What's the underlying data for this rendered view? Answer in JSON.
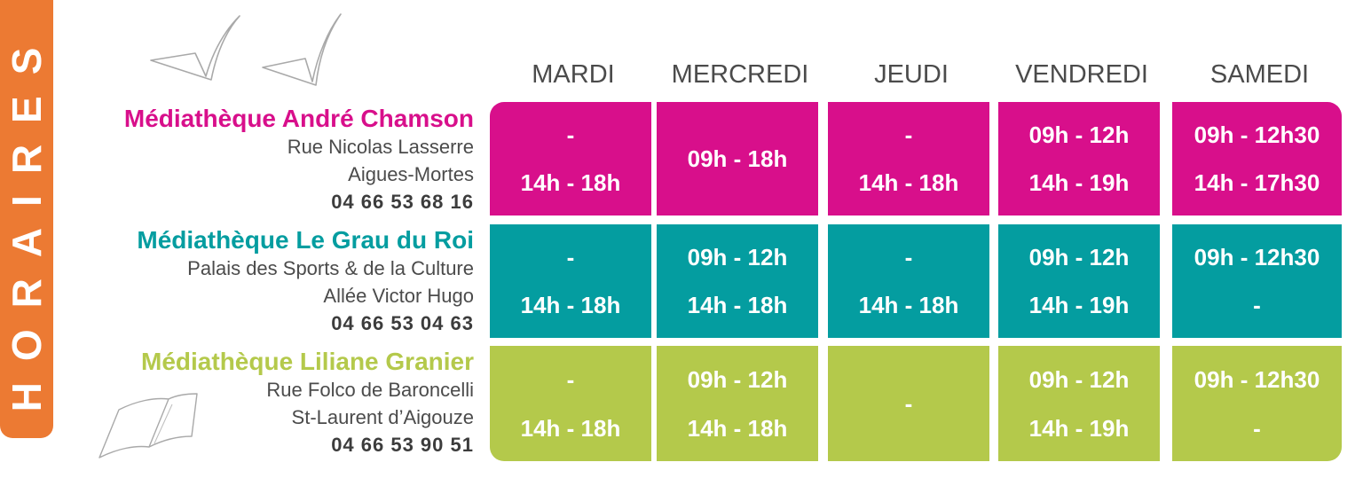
{
  "title": "HORAIRES",
  "colors": {
    "accent_orange": "#ec7a33",
    "magenta": "#d80f8b",
    "teal": "#049da0",
    "lime": "#b4c94b"
  },
  "icons": [
    "bird-sketch-icon",
    "open-book-sketch-icon"
  ],
  "days": [
    "MARDI",
    "MERCREDI",
    "JEUDI",
    "VENDREDI",
    "SAMEDI"
  ],
  "libraries": [
    {
      "name": "Médiathèque André Chamson",
      "address": [
        "Rue Nicolas Lasserre",
        "Aigues-Mortes"
      ],
      "phone": "04 66 53 68 16",
      "color": "#d80f8b",
      "hours": [
        [
          "-",
          "14h - 18h"
        ],
        [
          "09h - 18h"
        ],
        [
          "-",
          "14h - 18h"
        ],
        [
          "09h - 12h",
          "14h - 19h"
        ],
        [
          "09h - 12h30",
          "14h - 17h30"
        ]
      ]
    },
    {
      "name": "Médiathèque Le Grau du Roi",
      "address": [
        "Palais des Sports & de la Culture",
        "Allée Victor Hugo"
      ],
      "phone": "04 66 53 04 63",
      "color": "#049da0",
      "hours": [
        [
          "-",
          "14h - 18h"
        ],
        [
          "09h - 12h",
          "14h - 18h"
        ],
        [
          "-",
          "14h - 18h"
        ],
        [
          "09h - 12h",
          "14h - 19h"
        ],
        [
          "09h - 12h30",
          "-"
        ]
      ]
    },
    {
      "name": "Médiathèque Liliane Granier",
      "address": [
        "Rue Folco de Baroncelli",
        "St-Laurent d’Aigouze"
      ],
      "phone": "04 66 53 90 51",
      "color": "#b4c94b",
      "hours": [
        [
          "-",
          "14h - 18h"
        ],
        [
          "09h - 12h",
          "14h - 18h"
        ],
        [
          "-"
        ],
        [
          "09h - 12h",
          "14h - 19h"
        ],
        [
          "09h - 12h30",
          "-"
        ]
      ]
    }
  ]
}
